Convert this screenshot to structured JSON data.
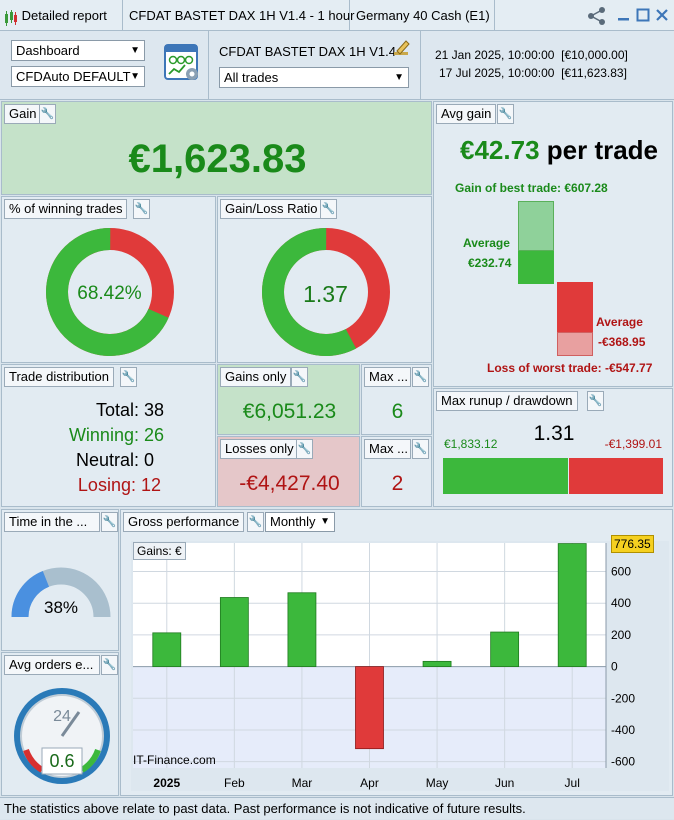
{
  "titlebar": {
    "report": "Detailed report",
    "system": "CFDAT BASTET DAX 1H V1.4 - 1 hour",
    "instrument": "Germany 40 Cash (E1)",
    "share_icon": "share-icon",
    "minimize_icon": "minimize-icon",
    "maximize_icon": "maximize-icon",
    "close_icon": "close-icon"
  },
  "controls": {
    "view_select": "Dashboard",
    "account_select": "CFDAuto DEFAULT",
    "system_name": "CFDAT BASTET DAX 1H V1.4",
    "trades_select": "All trades",
    "start": "21 Jan 2025, 10:00:00  [€10,000.00]",
    "end": "17 Jul 2025, 10:00:00  [€11,623.83]"
  },
  "gain": {
    "label": "Gain",
    "value": "€1,623.83"
  },
  "avg_gain": {
    "label": "Avg gain",
    "value": "€42.73",
    "suffix": " per trade",
    "best": "Gain of best trade: €607.28",
    "avg_win_label": "Average",
    "avg_win": "€232.74",
    "avg_loss_label": "Average",
    "avg_loss": "-€368.95",
    "worst": "Loss of worst trade: -€547.77"
  },
  "winning_pct": {
    "label": "% of winning trades",
    "value": "68.42%",
    "fraction": 0.6842
  },
  "gain_loss_ratio": {
    "label": "Gain/Loss Ratio",
    "value": "1.37",
    "fraction": 0.578
  },
  "distribution": {
    "label": "Trade distribution",
    "total": "Total: 38",
    "winning": "Winning: 26",
    "neutral": "Neutral: 0",
    "losing": "Losing: 12"
  },
  "gains_only": {
    "label": "Gains only",
    "value": "€6,051.23"
  },
  "losses_only": {
    "label": "Losses only",
    "value": "-€4,427.40"
  },
  "max_wins": {
    "label": "Max ...",
    "value": "6"
  },
  "max_losses": {
    "label": "Max ...",
    "value": "2"
  },
  "runup": {
    "label": "Max runup / drawdown",
    "ratio": "1.31",
    "runup": "€1,833.12",
    "drawdown": "-€1,399.01",
    "fraction": 0.567
  },
  "time_in_market": {
    "label": "Time in the ...",
    "value": "38%",
    "fraction": 0.38
  },
  "avg_orders": {
    "label": "Avg orders e...",
    "clock": "24",
    "value": "0.6"
  },
  "gross": {
    "label": "Gross performance",
    "period_select": "Monthly",
    "series_label": "Gains: €",
    "current_value": "776.35",
    "watermark": "IT-Finance.com"
  },
  "chart_data": {
    "type": "bar",
    "title": "",
    "categories": [
      "2025",
      "Feb",
      "Mar",
      "Apr",
      "May",
      "Jun",
      "Jul"
    ],
    "values": [
      213,
      436,
      466,
      -518,
      33,
      218,
      776.35
    ],
    "ylim": [
      -640,
      780
    ],
    "yticks": [
      -600,
      -400,
      -200,
      0,
      200,
      400,
      600
    ],
    "grid": true,
    "colors": {
      "positive": "#3cb83c",
      "negative": "#e03a3a"
    }
  },
  "footer": "The statistics above relate to past data. Past performance is not indicative of future results."
}
